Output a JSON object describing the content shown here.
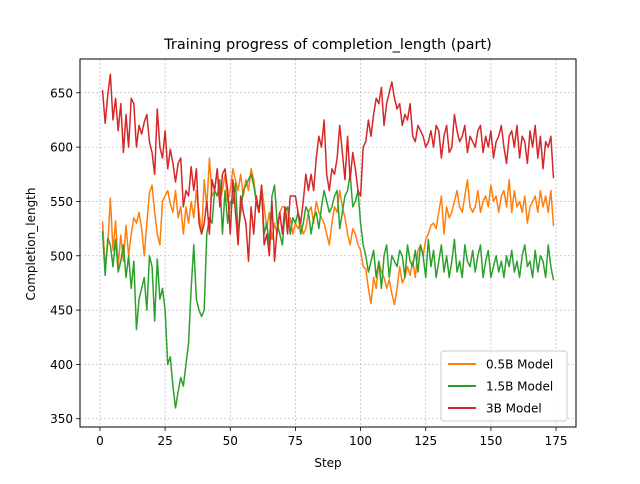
{
  "chart_data": {
    "type": "line",
    "title": "Training progress of completion_length (part)",
    "xlabel": "Step",
    "ylabel": "Completion_length",
    "xlim": [
      -7.65,
      182.65
    ],
    "ylim": [
      342.4,
      681.1
    ],
    "xticks": [
      0,
      25,
      50,
      75,
      100,
      125,
      150,
      175
    ],
    "yticks": [
      350,
      400,
      450,
      500,
      550,
      600,
      650
    ],
    "grid": true,
    "legend_position": "lower-right",
    "x": [
      1,
      2,
      3,
      4,
      5,
      6,
      7,
      8,
      9,
      10,
      11,
      12,
      13,
      14,
      15,
      16,
      17,
      18,
      19,
      20,
      21,
      22,
      23,
      24,
      25,
      26,
      27,
      28,
      29,
      30,
      31,
      32,
      33,
      34,
      35,
      36,
      37,
      38,
      39,
      40,
      41,
      42,
      43,
      44,
      45,
      46,
      47,
      48,
      49,
      50,
      51,
      52,
      53,
      54,
      55,
      56,
      57,
      58,
      59,
      60,
      61,
      62,
      63,
      64,
      65,
      66,
      67,
      68,
      69,
      70,
      71,
      72,
      73,
      74,
      75,
      76,
      77,
      78,
      79,
      80,
      81,
      82,
      83,
      84,
      85,
      86,
      87,
      88,
      89,
      90,
      91,
      92,
      93,
      94,
      95,
      96,
      97,
      98,
      99,
      100,
      101,
      102,
      103,
      104,
      105,
      106,
      107,
      108,
      109,
      110,
      111,
      112,
      113,
      114,
      115,
      116,
      117,
      118,
      119,
      120,
      121,
      122,
      123,
      124,
      125,
      126,
      127,
      128,
      129,
      130,
      131,
      132,
      133,
      134,
      135,
      136,
      137,
      138,
      139,
      140,
      141,
      142,
      143,
      144,
      145,
      146,
      147,
      148,
      149,
      150,
      151,
      152,
      153,
      154,
      155,
      156,
      157,
      158,
      159,
      160,
      161,
      162,
      163,
      164,
      165,
      166,
      167,
      168,
      169,
      170,
      171,
      172,
      173,
      174
    ],
    "series": [
      {
        "name": "0.5B Model",
        "color": "#ff7f0e",
        "values": [
          531,
          490,
          510,
          553,
          505,
          532,
          490,
          519,
          495,
          528,
          500,
          520,
          535,
          530,
          540,
          525,
          500,
          530,
          558,
          565,
          540,
          520,
          510,
          550,
          555,
          560,
          548,
          540,
          560,
          535,
          545,
          520,
          545,
          530,
          550,
          535,
          560,
          540,
          520,
          570,
          545,
          590,
          555,
          560,
          580,
          550,
          560,
          575,
          550,
          560,
          580,
          570,
          560,
          575,
          555,
          570,
          560,
          580,
          570,
          550,
          540,
          565,
          545,
          525,
          540,
          515,
          530,
          520,
          540,
          545,
          545,
          530,
          535,
          520,
          530,
          525,
          530,
          520,
          525,
          540,
          545,
          530,
          550,
          540,
          535,
          530,
          520,
          510,
          530,
          545,
          540,
          560,
          545,
          535,
          520,
          510,
          525,
          520,
          510,
          505,
          490,
          488,
          470,
          456,
          480,
          470,
          495,
          485,
          480,
          470,
          478,
          465,
          455,
          470,
          490,
          475,
          480,
          490,
          482,
          495,
          480,
          505,
          510,
          500,
          515,
          520,
          528,
          530,
          525,
          540,
          555,
          520,
          545,
          535,
          540,
          550,
          560,
          545,
          540,
          555,
          570,
          545,
          540,
          545,
          560,
          540,
          550,
          555,
          545,
          565,
          550,
          555,
          540,
          555,
          560,
          545,
          570,
          540,
          560,
          545,
          550,
          540,
          555,
          530,
          545,
          550,
          555,
          540,
          560,
          545,
          555,
          540,
          560,
          528
        ]
      },
      {
        "name": "1.5B Model",
        "color": "#2ca02c",
        "values": [
          522,
          482,
          516,
          510,
          490,
          515,
          485,
          495,
          510,
          480,
          500,
          470,
          495,
          432,
          460,
          470,
          480,
          450,
          500,
          490,
          440,
          497,
          460,
          470,
          450,
          400,
          407,
          380,
          360,
          375,
          388,
          380,
          400,
          420,
          470,
          510,
          460,
          450,
          444,
          450,
          520,
          535,
          530,
          560,
          555,
          570,
          520,
          560,
          530,
          550,
          548,
          567,
          520,
          540,
          560,
          565,
          570,
          575,
          565,
          550,
          540,
          560,
          520,
          530,
          510,
          555,
          565,
          530,
          520,
          510,
          540,
          545,
          520,
          535,
          530,
          540,
          520,
          530,
          545,
          540,
          520,
          535,
          540,
          525,
          545,
          560,
          550,
          540,
          545,
          555,
          560,
          525,
          540,
          555,
          560,
          575,
          545,
          550,
          560,
          530,
          510,
          500,
          485,
          495,
          505,
          480,
          495,
          470,
          500,
          510,
          480,
          500,
          495,
          490,
          505,
          500,
          480,
          510,
          495,
          490,
          505,
          485,
          510,
          500,
          480,
          515,
          490,
          505,
          480,
          495,
          510,
          485,
          500,
          480,
          495,
          515,
          485,
          495,
          480,
          510,
          495,
          490,
          505,
          485,
          500,
          510,
          480,
          495,
          505,
          480,
          490,
          500,
          485,
          495,
          480,
          500,
          490,
          505,
          485,
          495,
          480,
          500,
          510,
          490,
          495,
          480,
          505,
          485,
          500,
          495,
          480,
          510,
          490,
          478
        ]
      },
      {
        "name": "3B Model",
        "color": "#d62728",
        "values": [
          652,
          622,
          648,
          667,
          625,
          645,
          615,
          640,
          595,
          630,
          600,
          645,
          640,
          600,
          620,
          612,
          623,
          630,
          605,
          595,
          575,
          635,
          600,
          590,
          615,
          580,
          598,
          585,
          568,
          585,
          590,
          545,
          560,
          555,
          582,
          560,
          580,
          530,
          520,
          530,
          550,
          520,
          570,
          560,
          580,
          545,
          575,
          580,
          560,
          520,
          570,
          540,
          510,
          555,
          540,
          530,
          495,
          545,
          520,
          555,
          540,
          565,
          510,
          520,
          500,
          550,
          495,
          525,
          540,
          520,
          545,
          520,
          555,
          555,
          555,
          540,
          530,
          550,
          575,
          560,
          575,
          560,
          590,
          610,
          600,
          625,
          575,
          560,
          580,
          575,
          590,
          620,
          595,
          570,
          610,
          570,
          595,
          580,
          560,
          555,
          600,
          605,
          625,
          610,
          630,
          645,
          640,
          655,
          620,
          640,
          650,
          660,
          645,
          635,
          640,
          620,
          630,
          625,
          640,
          610,
          605,
          620,
          615,
          610,
          600,
          605,
          615,
          600,
          620,
          615,
          590,
          610,
          620,
          595,
          600,
          630,
          615,
          605,
          610,
          620,
          595,
          610,
          605,
          600,
          615,
          620,
          595,
          610,
          600,
          615,
          590,
          605,
          610,
          620,
          600,
          585,
          610,
          615,
          600,
          620,
          590,
          610,
          605,
          585,
          615,
          600,
          620,
          590,
          610,
          580,
          605,
          600,
          610,
          572
        ]
      }
    ]
  }
}
